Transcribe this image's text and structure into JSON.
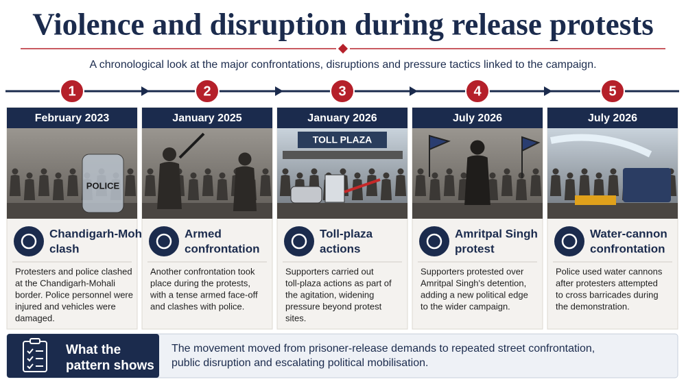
{
  "header": {
    "title": "Violence and disruption during release protests",
    "subtitle": "A chronological look at the major confrontations, disruptions and pressure tactics linked to the campaign."
  },
  "events": [
    {
      "number": 1,
      "date": "February 2023",
      "image_text": "POLICE",
      "title_lines": [
        "Chandigarh-Mohali",
        "clash"
      ],
      "description_lines": [
        "Protesters and police clashed",
        "at the Chandigarh-Mohali",
        "border. Police personnel were",
        "injured and vehicles were",
        "damaged."
      ]
    },
    {
      "number": 2,
      "date": "January 2025",
      "title_lines": [
        "Armed",
        "confrontation"
      ],
      "description_lines": [
        "Another confrontation took",
        "place during the protests,",
        "with a tense armed face-off",
        "and clashes with police."
      ]
    },
    {
      "number": 3,
      "date": "January 2026",
      "image_text": "TOLL PLAZA",
      "title_lines": [
        "Toll-plaza",
        "actions"
      ],
      "description_lines": [
        "Supporters carried out",
        "toll-plaza actions as part of",
        "the agitation, widening",
        "pressure beyond protest",
        "sites."
      ]
    },
    {
      "number": 4,
      "date": "July 2026",
      "title_lines": [
        "Amritpal Singh",
        "protest"
      ],
      "description_lines": [
        "Supporters protested over",
        "Amritpal Singh's detention,",
        "adding a new political edge",
        "to the wider campaign."
      ]
    },
    {
      "number": 5,
      "date": "July 2026",
      "title_lines": [
        "Water-cannon",
        "confrontation"
      ],
      "description_lines": [
        "Police used water cannons",
        "after protesters attempted",
        "to cross barricades during",
        "the demonstration."
      ]
    }
  ],
  "summary": {
    "label_lines": [
      "What the",
      "pattern shows"
    ],
    "text_lines": [
      "The movement moved from prisoner-release demands to repeated street confrontation,",
      "public disruption and escalating political mobilisation."
    ]
  }
}
